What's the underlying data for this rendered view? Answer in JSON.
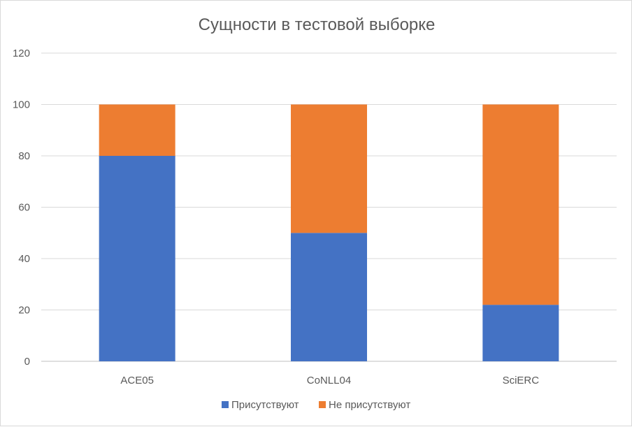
{
  "chart_data": {
    "type": "bar",
    "stacked": true,
    "title": "Сущности в тестовой выборке",
    "categories": [
      "ACE05",
      "CoNLL04",
      "SciERC"
    ],
    "series": [
      {
        "name": "Присутствуют",
        "values": [
          80,
          50,
          22
        ],
        "color": "#4472C4"
      },
      {
        "name": "Не присутствуют",
        "values": [
          20,
          50,
          78
        ],
        "color": "#ED7D31"
      }
    ],
    "ylim": [
      0,
      120
    ],
    "yticks": [
      0,
      20,
      40,
      60,
      80,
      100,
      120
    ],
    "grid": true,
    "legend": "bottom"
  }
}
